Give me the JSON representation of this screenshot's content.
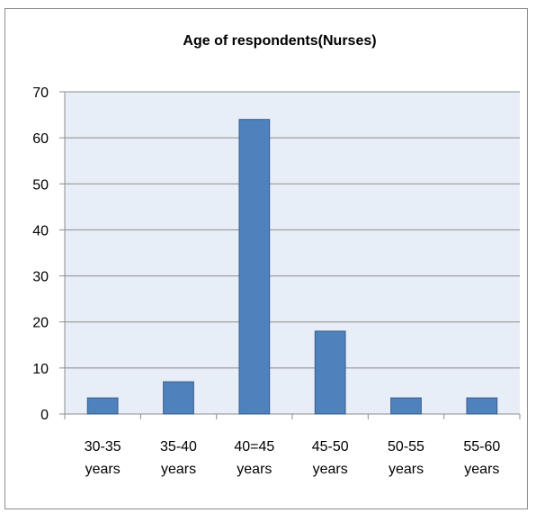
{
  "chart_data": {
    "type": "bar",
    "title": "Age of respondents(Nurses)",
    "xlabel": "",
    "ylabel": "",
    "categories": [
      [
        "30-35",
        "years"
      ],
      [
        "35-40",
        "years"
      ],
      [
        "40=45",
        "years"
      ],
      [
        "45-50",
        "years"
      ],
      [
        "50-55",
        "years"
      ],
      [
        "55-60",
        "years"
      ]
    ],
    "values": [
      3.5,
      7,
      64,
      18,
      3.5,
      3.5
    ],
    "ylim": [
      0,
      70
    ],
    "yticks": [
      0,
      10,
      20,
      30,
      40,
      50,
      60,
      70
    ],
    "grid": true,
    "legend": "none",
    "colors": {
      "bar_fill": "#4f81bd",
      "bar_stroke": "#385d8a",
      "plot_background": "#e8eef7",
      "gridline": "#8c8c8c",
      "axis": "#8c8c8c"
    }
  }
}
